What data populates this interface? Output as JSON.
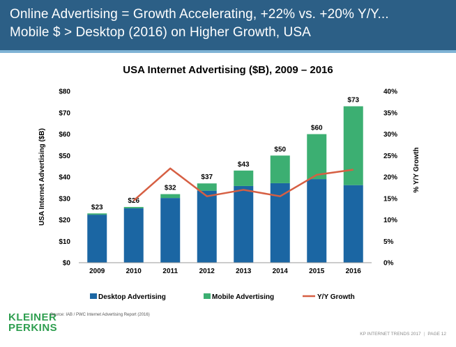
{
  "header": {
    "line1": "Online Advertising = Growth Accelerating, +22% vs. +20% Y/Y...",
    "line2": "Mobile $ > Desktop (2016) on Higher Growth, USA"
  },
  "colors": {
    "header_bg": "#2c5f86",
    "header_rule": "#7fb3d5",
    "desktop": "#1b66a3",
    "mobile": "#3caf72",
    "growth": "#d65f43",
    "logo": "#2e9e4f"
  },
  "chart_data": {
    "type": "bar",
    "stacked": true,
    "title": "USA Internet Advertising ($B), 2009 – 2016",
    "ylabel": "USA Internet Advertising ($B)",
    "y2label": "% Y/Y Growth",
    "categories": [
      "2009",
      "2010",
      "2011",
      "2012",
      "2013",
      "2014",
      "2015",
      "2016"
    ],
    "series": [
      {
        "name": "Desktop Advertising",
        "type": "bar",
        "axis": "left",
        "values": [
          22.4,
          25.4,
          30.2,
          33.6,
          35.8,
          37.1,
          39.0,
          36.2
        ]
      },
      {
        "name": "Mobile Advertising",
        "type": "bar",
        "axis": "left",
        "values": [
          0.6,
          0.6,
          1.8,
          3.4,
          7.2,
          12.9,
          21.0,
          36.8
        ]
      },
      {
        "name": "Y/Y Growth",
        "type": "line",
        "axis": "right",
        "values": [
          null,
          14.5,
          22.0,
          15.5,
          17.0,
          15.5,
          20.5,
          21.7
        ]
      }
    ],
    "total_labels": [
      "$23",
      "$26",
      "$32",
      "$37",
      "$43",
      "$50",
      "$60",
      "$73"
    ],
    "ylim": [
      0,
      80
    ],
    "y_ticks": [
      "$0",
      "$10",
      "$20",
      "$30",
      "$40",
      "$50",
      "$60",
      "$70",
      "$80"
    ],
    "y2lim": [
      0,
      40
    ],
    "y2_ticks": [
      "0%",
      "5%",
      "10%",
      "15%",
      "20%",
      "25%",
      "30%",
      "35%",
      "40%"
    ],
    "legend": [
      "Desktop Advertising",
      "Mobile Advertising",
      "Y/Y Growth"
    ],
    "legend_position": "bottom"
  },
  "footer": {
    "logo_line1": "KLEINER",
    "logo_line2": "PERKINS",
    "source": "Source: IAB / PWC Internet Advertising Report (2016)",
    "right": "KP INTERNET TRENDS 2017",
    "page": "PAGE 12"
  }
}
